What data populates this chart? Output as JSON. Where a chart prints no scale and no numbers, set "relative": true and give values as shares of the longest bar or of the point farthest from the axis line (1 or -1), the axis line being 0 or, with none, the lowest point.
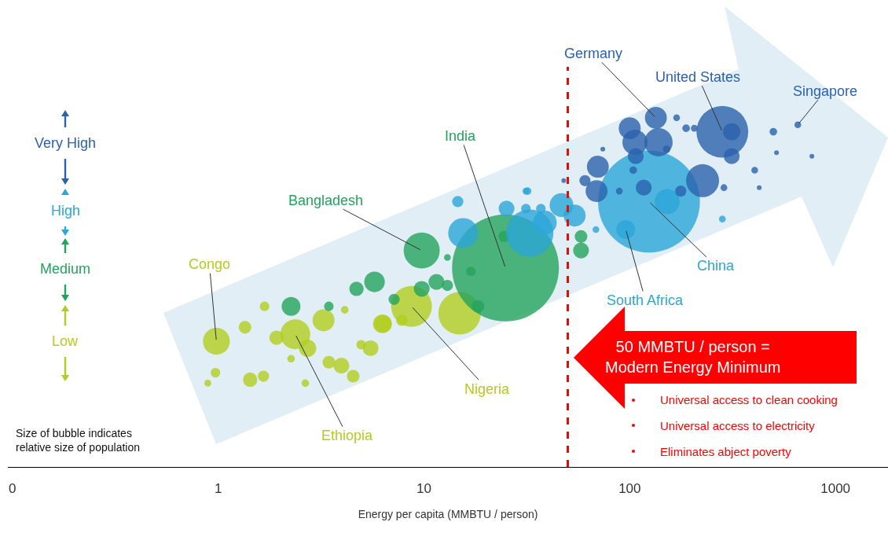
{
  "chart_data": {
    "type": "bubble",
    "relative": true,
    "log": "x",
    "legend": "left",
    "grid": false,
    "xlabel": "Energy per capita (MMBTU / person)",
    "xlim": [
      0.095,
      1800
    ],
    "xticks": [
      {
        "value": 0.1,
        "label": "0"
      },
      1,
      10,
      100,
      1000
    ],
    "series": [
      {
        "name": "Low",
        "color": "#b2cd1f",
        "x": [
          0.98,
          0.97,
          0.89,
          1.35,
          1.68,
          1.43,
          1.66,
          1.92,
          2.37,
          2.72,
          2.26,
          3.25,
          4.12,
          3.45,
          3.97,
          4.53,
          2.65,
          4.95,
          5.5,
          6.28,
          8.7,
          14.9,
          6.33,
          7.8
        ],
        "values": [
          0.36,
          0.27,
          0.24,
          0.4,
          0.46,
          0.25,
          0.26,
          0.37,
          0.38,
          0.34,
          0.31,
          0.42,
          0.45,
          0.3,
          0.29,
          0.26,
          0.24,
          0.35,
          0.34,
          0.41,
          0.46,
          0.44,
          0.41,
          0.42
        ],
        "sizes": [
          0.063,
          0.008,
          0.004,
          0.014,
          0.008,
          0.018,
          0.011,
          0.018,
          0.078,
          0.026,
          0.005,
          0.042,
          0.005,
          0.014,
          0.022,
          0.014,
          0.005,
          0.008,
          0.022,
          0.031,
          0.146,
          0.158,
          0.026,
          0.011
        ]
      },
      {
        "name": "Medium",
        "color": "#24a35c",
        "x": [
          2.26,
          3.45,
          4.7,
          5.75,
          9.75,
          24.9,
          11.5,
          13,
          9.75,
          7.16,
          16.9,
          13,
          18.3,
          24.5,
          58,
          58
        ],
        "values": [
          0.46,
          0.46,
          0.51,
          0.53,
          0.62,
          0.57,
          0.53,
          0.52,
          0.51,
          0.48,
          0.56,
          0.6,
          0.46,
          0.66,
          0.62,
          0.66
        ],
        "sizes": [
          0.031,
          0.008,
          0.018,
          0.037,
          0.114,
          1,
          0.022,
          0.011,
          0.022,
          0.011,
          0.008,
          0.004,
          0.014,
          0.011,
          0.022,
          0.014
        ]
      },
      {
        "name": "High",
        "color": "#2aa6d8",
        "x": [
          15.5,
          14.6,
          25.2,
          32.7,
          38.7,
          46.6,
          54,
          31.3,
          37,
          31.3,
          31.9,
          124,
          95.7,
          152,
          282,
          68.5
        ],
        "values": [
          0.67,
          0.76,
          0.74,
          0.67,
          0.7,
          0.75,
          0.72,
          0.74,
          0.74,
          0.79,
          0.79,
          0.76,
          0.68,
          0.76,
          0.71,
          0.68
        ],
        "sizes": [
          0.078,
          0.011,
          0.022,
          0.195,
          0.049,
          0.049,
          0.042,
          0.008,
          0.008,
          0.004,
          0.005,
          0.91,
          0.031,
          0.055,
          0.004,
          0.004
        ]
      },
      {
        "name": "Very High",
        "color": "#2a62ad",
        "x": [
          282,
          313,
          313,
          226,
          134,
          100,
          106,
          138,
          107,
          70,
          69,
          60.6,
          117,
          177,
          151,
          169,
          188,
          206,
          499,
          656,
          768,
          517,
          405,
          287,
          426,
          104,
          89,
          47.8,
          74
        ],
        "values": [
          0.96,
          0.96,
          0.89,
          0.82,
          1,
          0.97,
          0.93,
          0.93,
          0.89,
          0.86,
          0.79,
          0.82,
          0.8,
          0.79,
          0.91,
          1,
          0.97,
          0.97,
          0.96,
          0.98,
          0.89,
          0.9,
          0.85,
          0.8,
          0.8,
          0.85,
          0.79,
          0.82,
          0.91
        ],
        "sizes": [
          0.235,
          0.026,
          0.022,
          0.095,
          0.042,
          0.042,
          0.055,
          0.07,
          0.022,
          0.042,
          0.042,
          0.011,
          0.022,
          0.011,
          0.005,
          0.004,
          0.005,
          0.004,
          0.005,
          0.004,
          0.002,
          0.002,
          0.004,
          0.004,
          0.002,
          0.005,
          0.004,
          0.002,
          0.002
        ]
      }
    ],
    "ref_lines": [
      {
        "axis": "x",
        "value": 50,
        "label": "50 MMBTU / person =\nModern Energy Minimum",
        "color": "#ff0000",
        "line_style": "dashed"
      }
    ],
    "annotations": [
      {
        "text": "Congo",
        "x": 0.98,
        "y": 0.36
      },
      {
        "text": "Ethiopia",
        "x": 2.37,
        "y": 0.38
      },
      {
        "text": "Nigeria",
        "x": 8.7,
        "y": 0.46
      },
      {
        "text": "Bangladesh",
        "x": 9.75,
        "y": 0.62
      },
      {
        "text": "India",
        "x": 24.9,
        "y": 0.57
      },
      {
        "text": "South Africa",
        "x": 95.7,
        "y": 0.68
      },
      {
        "text": "China",
        "x": 124,
        "y": 0.76
      },
      {
        "text": "Germany",
        "x": 134,
        "y": 1
      },
      {
        "text": "United States",
        "x": 282,
        "y": 0.96
      },
      {
        "text": "Singapore",
        "x": 656,
        "y": 0.98
      },
      "Size of bubble indicates\nrelative size of population",
      "Universal access to clean cooking",
      "Universal access to electricity",
      "Eliminates abject poverty"
    ]
  }
}
